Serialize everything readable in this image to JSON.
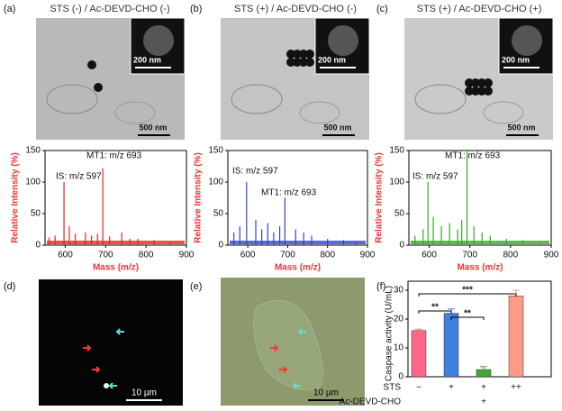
{
  "panels": {
    "a": {
      "label": "(a)",
      "title": "STS (-) / Ac-DEVD-CHO (-)",
      "inset_scale": "200 nm",
      "scale": "500 nm"
    },
    "b": {
      "label": "(b)",
      "title": "STS (+) / Ac-DEVD-CHO (-)",
      "inset_scale": "200 nm",
      "scale": "500 nm"
    },
    "c": {
      "label": "(c)",
      "title": "STS (+) / Ac-DEVD-CHO (+)",
      "inset_scale": "200 nm",
      "scale": "500 nm"
    },
    "d": {
      "label": "(d)",
      "scale": "10 µm"
    },
    "e": {
      "label": "(e)",
      "scale": "10 µm"
    },
    "f": {
      "label": "(f)"
    }
  },
  "chart_data": [
    {
      "type": "spectrum",
      "color": "#ee2222",
      "xlabel": "Mass (m/z)",
      "ylabel": "Relative Intensity (%)",
      "annotations": [
        "IS: m/z 597",
        "MT1: m/z 693"
      ],
      "x": [
        560,
        575,
        597,
        610,
        625,
        650,
        665,
        680,
        693,
        710,
        740,
        760,
        780,
        820,
        860
      ],
      "values": [
        12,
        15,
        100,
        30,
        18,
        20,
        15,
        18,
        122,
        14,
        20,
        10,
        10,
        8,
        5
      ],
      "xlim": [
        550,
        900
      ],
      "ylim": [
        0,
        150
      ],
      "xticks": [
        600,
        700,
        800,
        900
      ],
      "yticks": [
        0,
        50,
        100,
        150
      ]
    },
    {
      "type": "spectrum",
      "color": "#3344cc",
      "xlabel": "Mass (m/z)",
      "ylabel": "Relative Intensity (%)",
      "annotations": [
        "IS: m/z 597",
        "MT1: m/z 693"
      ],
      "x": [
        565,
        580,
        597,
        620,
        635,
        650,
        665,
        680,
        693,
        720,
        740,
        760,
        800,
        840,
        870
      ],
      "values": [
        20,
        30,
        100,
        40,
        25,
        35,
        20,
        30,
        75,
        25,
        20,
        15,
        10,
        8,
        5
      ],
      "xlim": [
        550,
        900
      ],
      "ylim": [
        0,
        150
      ],
      "xticks": [
        600,
        700,
        800,
        900
      ],
      "yticks": [
        0,
        50,
        100,
        150
      ]
    },
    {
      "type": "spectrum",
      "color": "#33aa22",
      "xlabel": "Mass (m/z)",
      "ylabel": "Relative Intensity (%)",
      "annotations": [
        "IS: m/z 597",
        "MT1: m/z 693"
      ],
      "x": [
        565,
        585,
        597,
        610,
        630,
        650,
        670,
        680,
        693,
        710,
        730,
        750,
        790,
        830,
        870
      ],
      "values": [
        15,
        25,
        100,
        45,
        30,
        35,
        25,
        40,
        150,
        30,
        20,
        15,
        10,
        8,
        5
      ],
      "xlim": [
        550,
        900
      ],
      "ylim": [
        0,
        150
      ],
      "xticks": [
        600,
        700,
        800,
        900
      ],
      "yticks": [
        0,
        50,
        100,
        150
      ]
    },
    {
      "type": "bar",
      "ylabel": "Caspase activity (U/mL)",
      "categories": [
        null,
        null,
        null,
        null
      ],
      "values": [
        16,
        22,
        2.5,
        28
      ],
      "errors": [
        0.5,
        1.5,
        1,
        2
      ],
      "colors": [
        "#ff6688",
        "#3f7fe0",
        "#44aa33",
        "#ff9988"
      ],
      "rows": [
        {
          "name": "STS",
          "labels": [
            "−",
            "+",
            "+",
            "++"
          ]
        },
        {
          "name": "Ac-DEVD-CHO",
          "labels": [
            null,
            null,
            "+",
            null
          ]
        }
      ],
      "significance": [
        "**",
        "**",
        "***"
      ],
      "ylim": [
        0,
        30
      ],
      "yticks": [
        0,
        10,
        20,
        30
      ]
    }
  ]
}
